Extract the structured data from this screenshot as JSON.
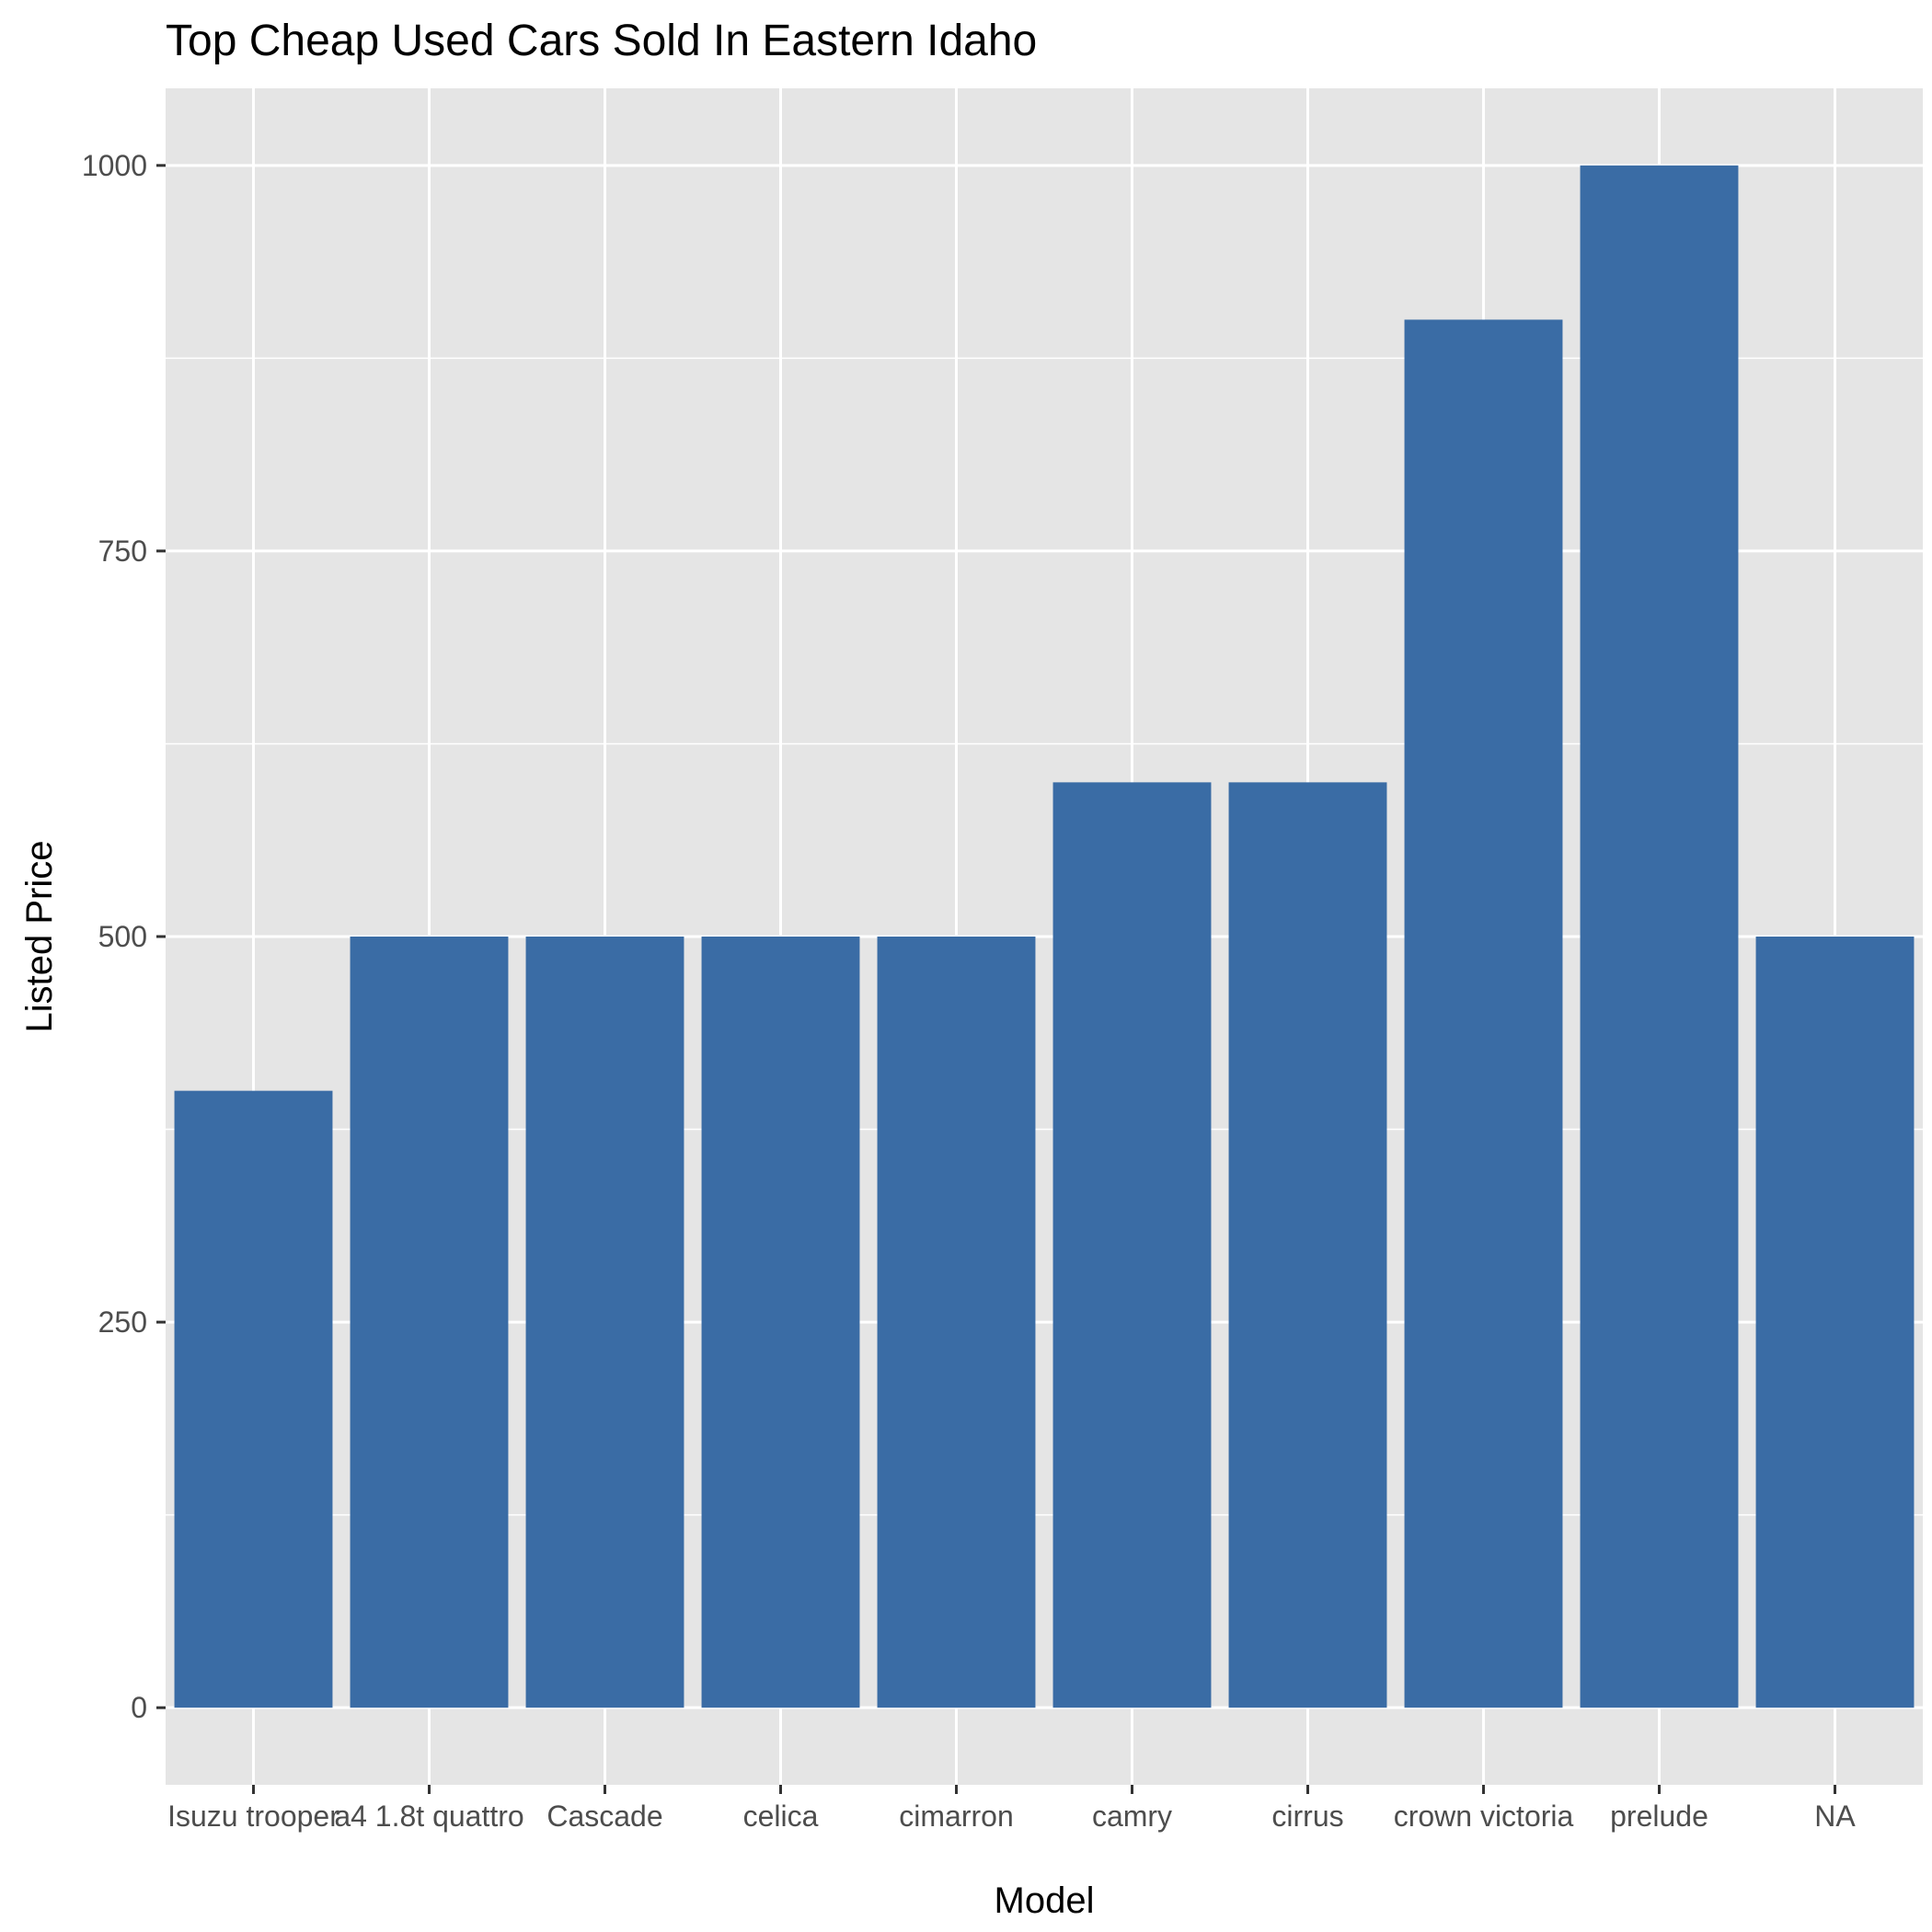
{
  "chart_data": {
    "type": "bar",
    "title": "Top Cheap Used Cars Sold In Eastern Idaho",
    "xlabel": "Model",
    "ylabel": "Listed Price",
    "categories": [
      "Isuzu trooper",
      "a4 1.8t quattro",
      "Cascade",
      "celica",
      "cimarron",
      "camry",
      "cirrus",
      "crown victoria",
      "prelude",
      "NA"
    ],
    "values": [
      400,
      500,
      500,
      500,
      500,
      600,
      600,
      900,
      1000,
      500
    ],
    "ylim": [
      -50,
      1050
    ],
    "yticks": [
      0,
      250,
      500,
      750,
      1000
    ],
    "ytick_labels": [
      "0",
      "250",
      "500",
      "750",
      "1000"
    ],
    "grid": true,
    "legend": "none",
    "colors": {
      "bar": "#3A6CA5",
      "panel": "#E5E5E5",
      "grid": "#FFFFFF",
      "tick": "#333333",
      "tick_label": "#4D4D4D",
      "text": "#000000"
    }
  }
}
